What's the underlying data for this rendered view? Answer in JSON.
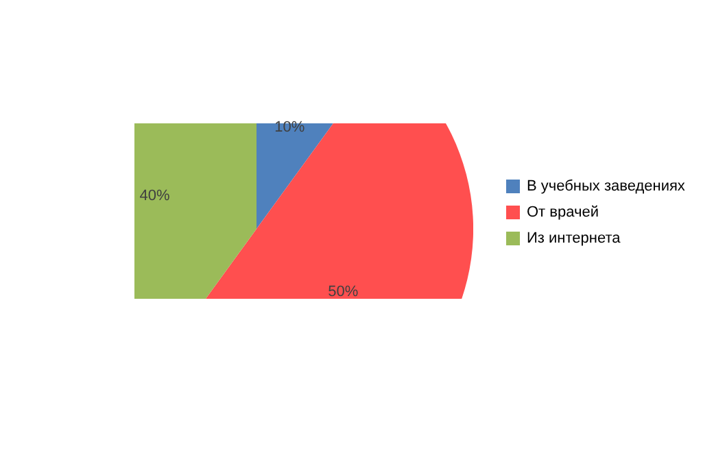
{
  "chart_data": {
    "type": "pie",
    "categories": [
      "В учебных заведениях",
      "От врачей",
      "Из интернета"
    ],
    "values": [
      10,
      50,
      40
    ],
    "colors": [
      "#4f81bd",
      "#ff4f4f",
      "#9bbb59"
    ],
    "value_labels": [
      "10%",
      "50%",
      "40%"
    ],
    "legend": "right"
  }
}
